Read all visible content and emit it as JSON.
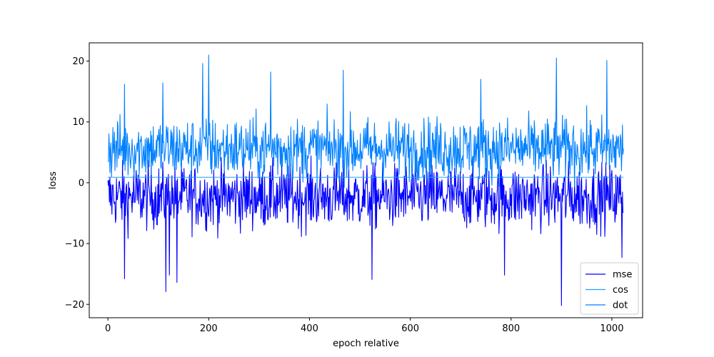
{
  "chart_data": {
    "type": "line",
    "title": "",
    "xlabel": "epoch relative",
    "ylabel": "loss",
    "xlim": [
      -37,
      1061
    ],
    "ylim": [
      -22.2,
      23.0
    ],
    "xticks": [
      0,
      200,
      400,
      600,
      800,
      1000
    ],
    "yticks": [
      -20,
      -10,
      0,
      10,
      20
    ],
    "x_range": [
      0,
      1023
    ],
    "grid": false,
    "legend_position": "lower right",
    "series": [
      {
        "name": "mse",
        "color": "#0000ff",
        "typical_range": [
          -6.5,
          2.5
        ],
        "notable_points": [
          [
            33,
            -15.8
          ],
          [
            115,
            -17.9
          ],
          [
            122,
            -15.2
          ],
          [
            137,
            -16.4
          ],
          [
            524,
            -15.9
          ],
          [
            787,
            -15.2
          ],
          [
            900,
            -20.2
          ],
          [
            1020,
            -12.3
          ]
        ]
      },
      {
        "name": "cos",
        "color": "#1ea0ff",
        "constant_value": 0.9
      },
      {
        "name": "dot",
        "color": "#0080ff",
        "typical_range": [
          1.5,
          10.0
        ],
        "notable_points": [
          [
            33,
            16.2
          ],
          [
            109,
            16.4
          ],
          [
            188,
            19.6
          ],
          [
            200,
            21.0
          ],
          [
            323,
            18.2
          ],
          [
            467,
            18.5
          ],
          [
            740,
            17.0
          ],
          [
            890,
            20.5
          ],
          [
            990,
            20.1
          ]
        ]
      }
    ]
  }
}
